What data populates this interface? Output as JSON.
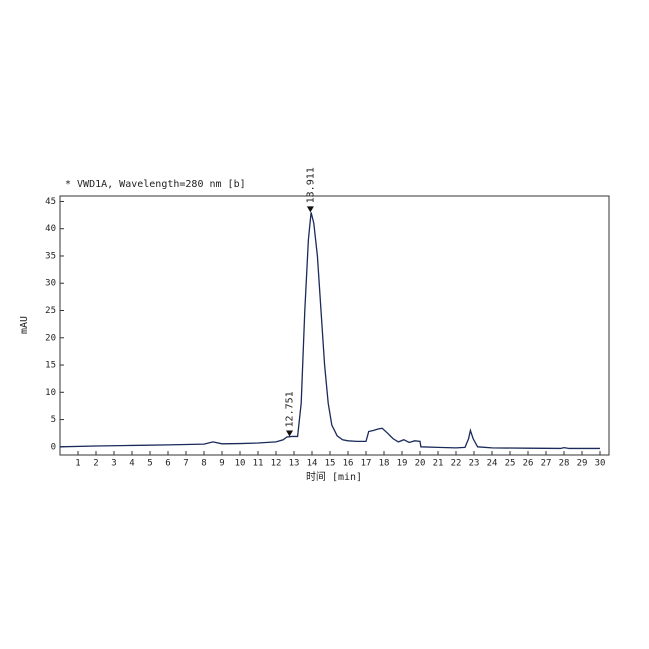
{
  "chart_data": {
    "type": "line",
    "title": "* VWD1A, Wavelength=280 nm [b]",
    "xlabel": "时间 [min]",
    "ylabel": "mAU",
    "x": [
      0,
      2,
      4,
      6,
      8,
      8.5,
      9,
      10,
      11,
      12,
      12.4,
      12.6,
      12.9,
      13.2,
      13.4,
      13.6,
      13.8,
      13.95,
      14.1,
      14.3,
      14.5,
      14.7,
      14.9,
      15.1,
      15.4,
      15.7,
      16,
      16.5,
      17,
      17.15,
      17.4,
      17.7,
      17.9,
      18.2,
      18.5,
      18.8,
      19.1,
      19.4,
      19.7,
      20,
      20.05,
      21,
      22,
      22.5,
      22.7,
      22.8,
      22.95,
      23.2,
      24,
      26,
      27.8,
      28,
      28.3,
      30
    ],
    "values": [
      0,
      0.15,
      0.25,
      0.35,
      0.5,
      0.9,
      0.55,
      0.6,
      0.7,
      0.9,
      1.3,
      1.8,
      1.9,
      1.9,
      8,
      25,
      38,
      43,
      41,
      35,
      25,
      15,
      8,
      4,
      2,
      1.3,
      1.1,
      1,
      1,
      2.8,
      3,
      3.3,
      3.4,
      2.5,
      1.5,
      0.9,
      1.3,
      0.8,
      1.1,
      1,
      0,
      -0.1,
      -0.2,
      -0.1,
      1.5,
      3,
      1.5,
      0,
      -0.2,
      -0.25,
      -0.3,
      -0.15,
      -0.3,
      -0.3
    ],
    "color": "#1a2a5a",
    "peaks": [
      {
        "x": 12.751,
        "y": 1.9
      },
      {
        "x": 13.911,
        "y": 43
      }
    ],
    "xlim": [
      0,
      30.5
    ],
    "ylim": [
      -1.5,
      46
    ],
    "xticks": [
      1,
      2,
      3,
      4,
      5,
      6,
      7,
      8,
      9,
      10,
      11,
      12,
      13,
      14,
      15,
      16,
      17,
      18,
      19,
      20,
      21,
      22,
      23,
      24,
      25,
      26,
      27,
      28,
      29,
      30
    ],
    "yticks": [
      0,
      5,
      10,
      15,
      20,
      25,
      30,
      35,
      40,
      45
    ]
  }
}
